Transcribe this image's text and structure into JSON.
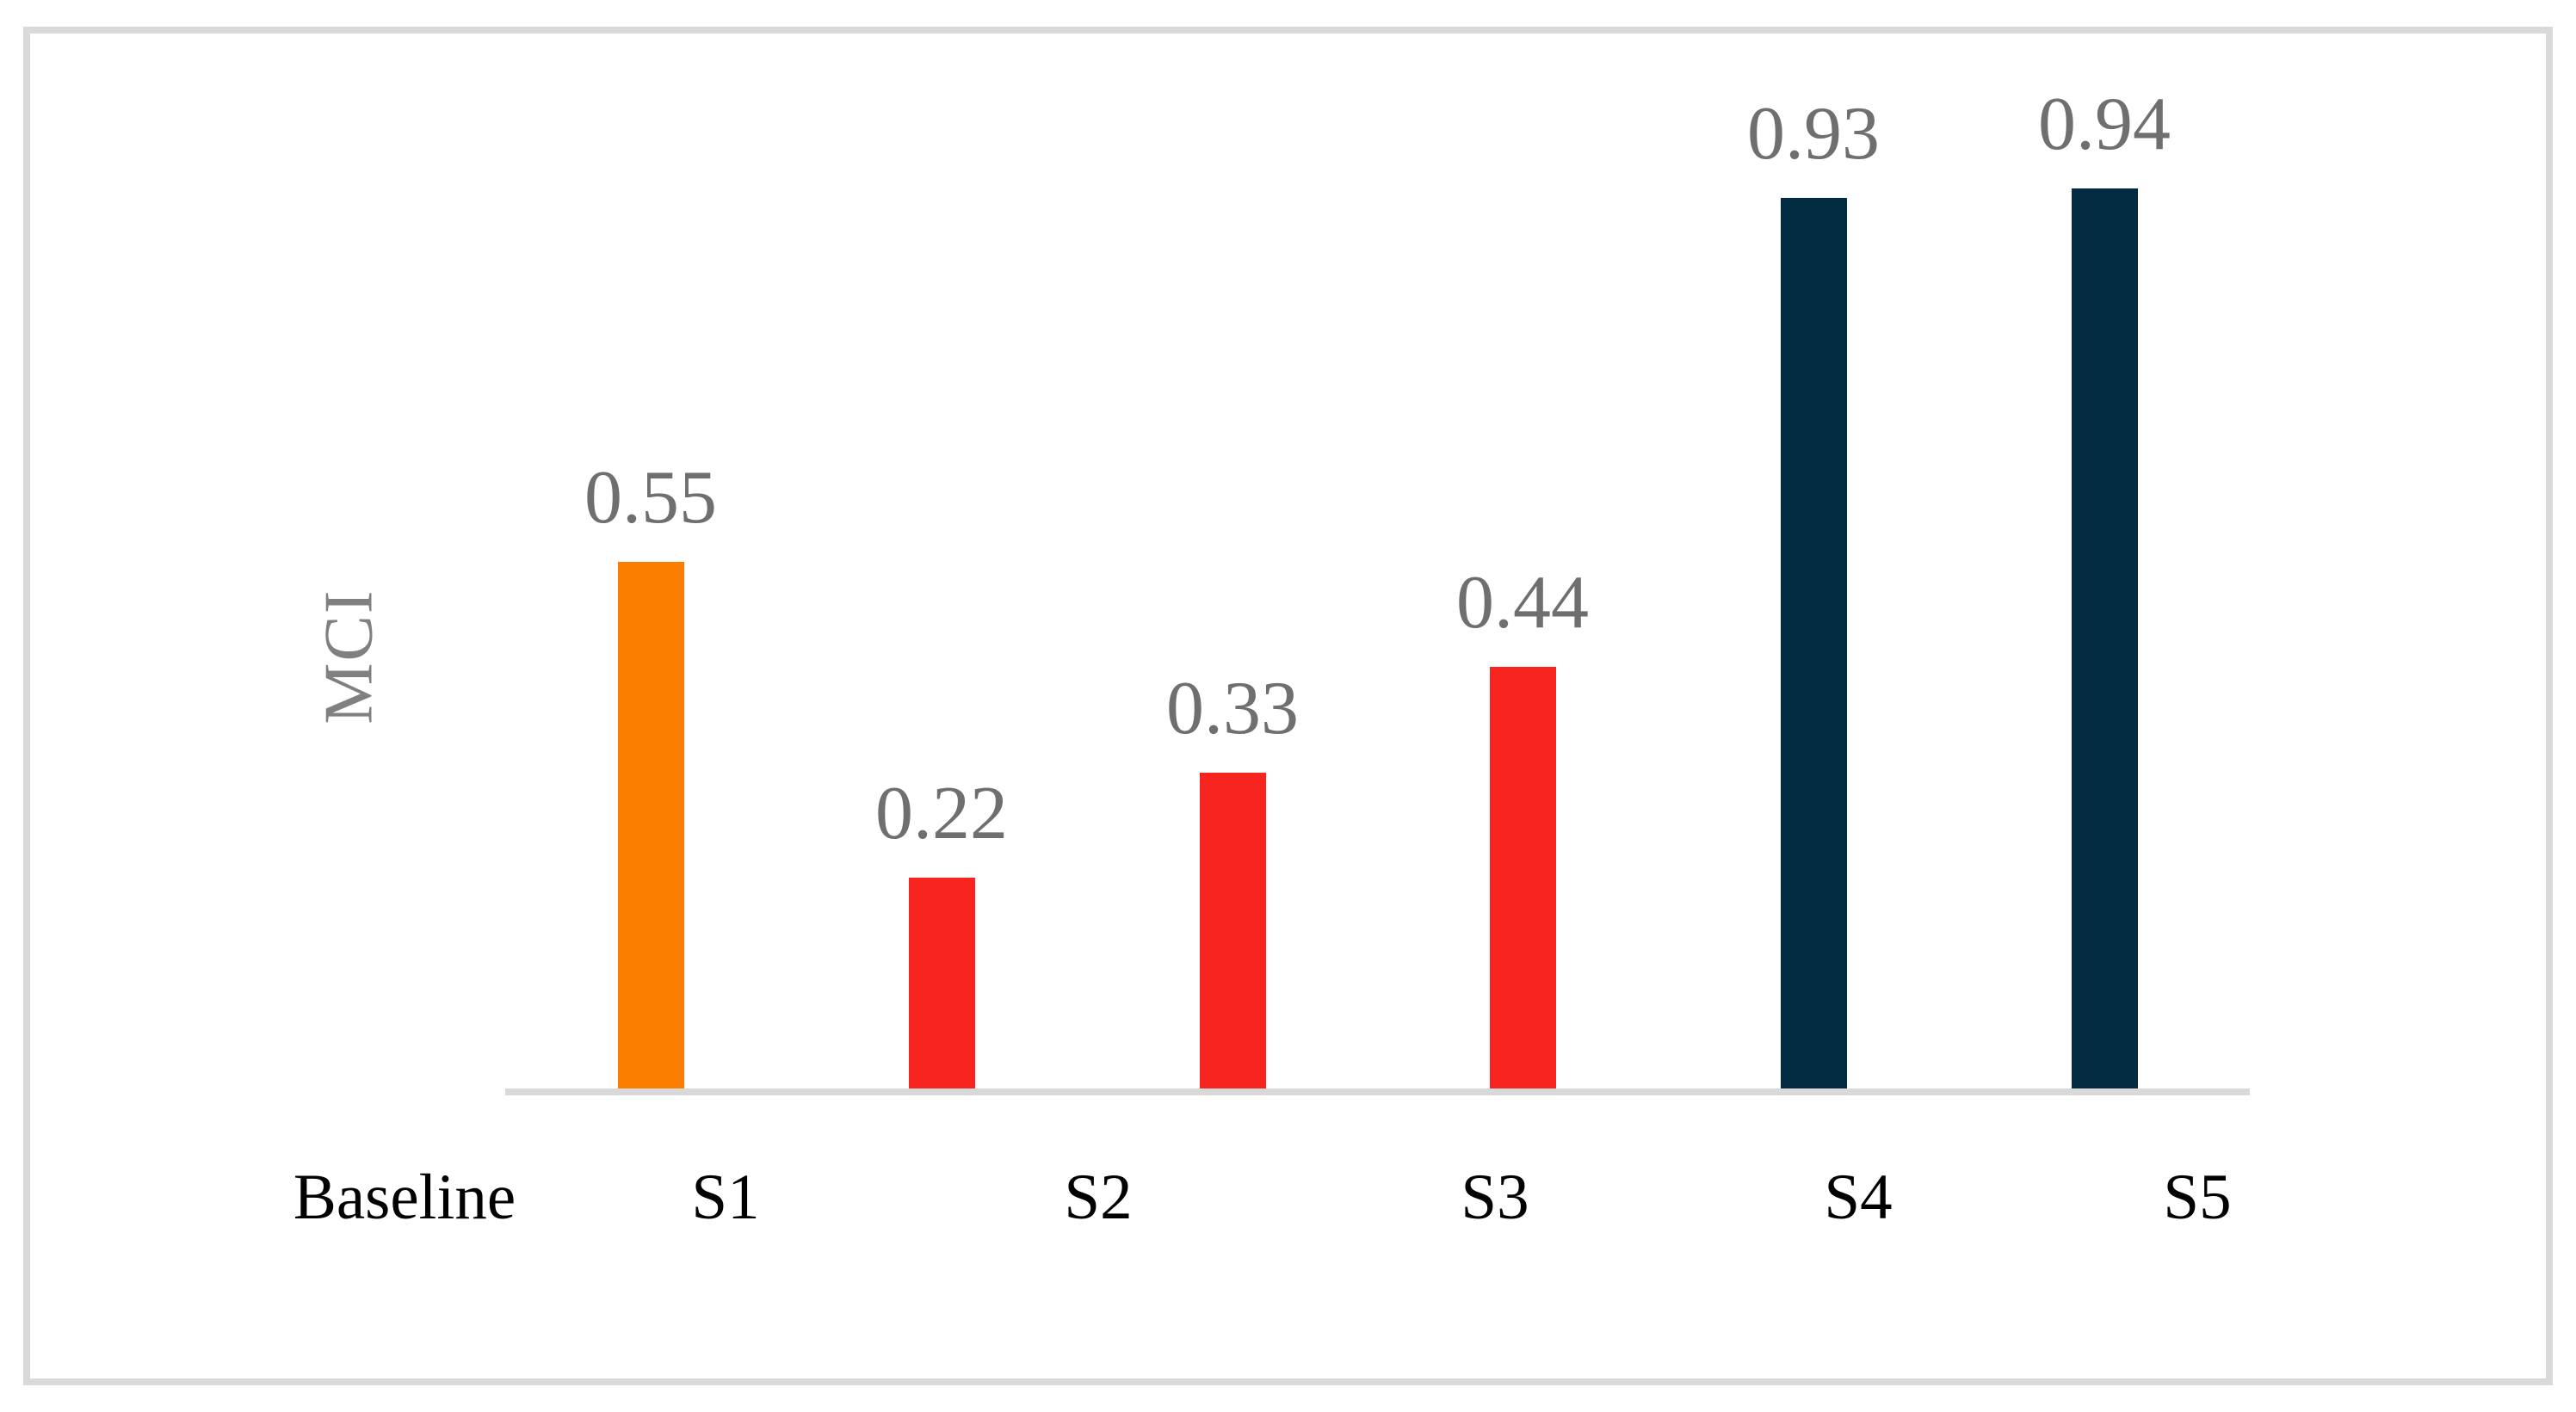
{
  "chart_data": {
    "type": "bar",
    "title": "",
    "xlabel": "",
    "ylabel": "MCI",
    "categories": [
      "Baseline",
      "S1",
      "S2",
      "S3",
      "S4",
      "S5"
    ],
    "values": [
      0.55,
      0.22,
      0.33,
      0.44,
      0.93,
      0.94
    ],
    "value_labels": [
      "0.55",
      "0.22",
      "0.33",
      "0.44",
      "0.93",
      "0.94"
    ],
    "series": [
      {
        "name": "MCI",
        "values": [
          0.55,
          0.22,
          0.33,
          0.44,
          0.93,
          0.94
        ]
      }
    ],
    "bar_colors": [
      "#fc7e00",
      "#f82420",
      "#f82420",
      "#f82420",
      "#032c43",
      "#032c43"
    ],
    "ylim": [
      0,
      1.1
    ],
    "grid": false,
    "legend_position": "none",
    "data_labels_shown": true
  },
  "style": {
    "axis_line_color": "#d9d9d9",
    "frame_border_color": "#d9d9d9",
    "value_label_color": "#6f6f6f",
    "category_label_color": "#000000",
    "ylabel_color": "#808080",
    "background_color": "#ffffff"
  }
}
